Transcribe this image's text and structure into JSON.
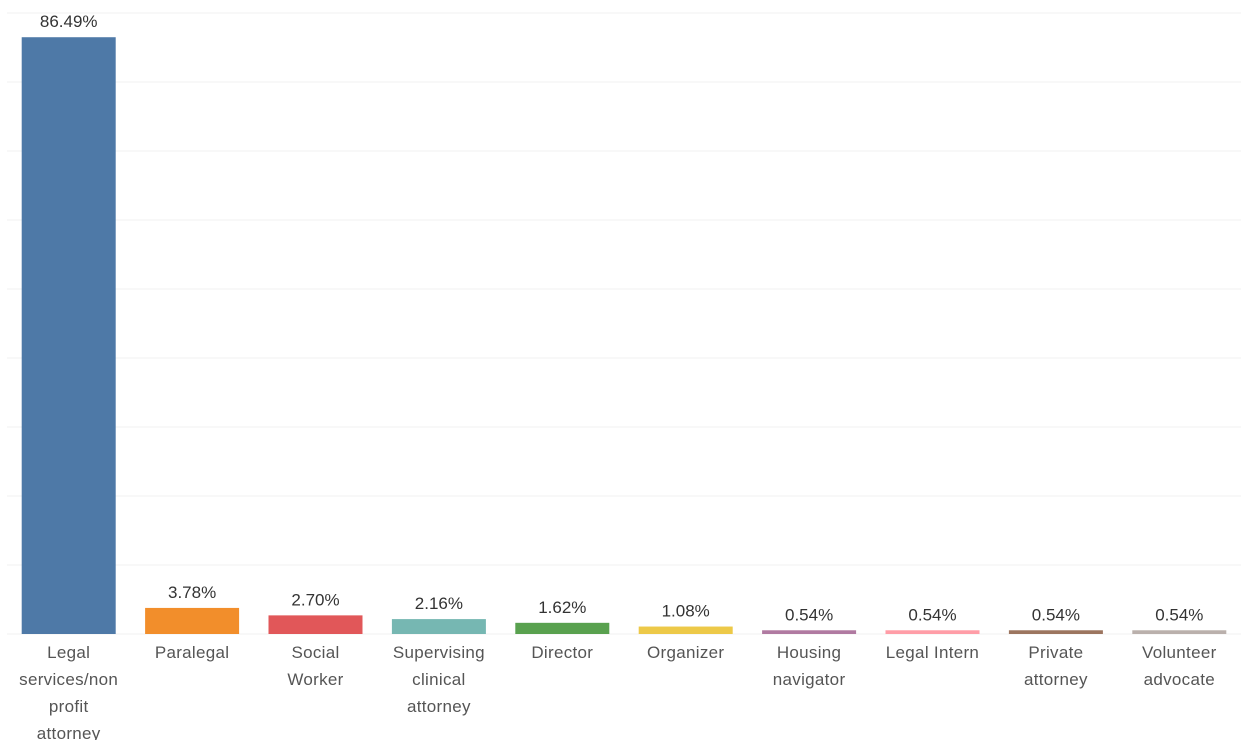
{
  "chart_data": {
    "type": "bar",
    "categories": [
      "Legal services/non profit attorney",
      "Paralegal",
      "Social Worker",
      "Supervising clinical attorney",
      "Director",
      "Organizer",
      "Housing navigator",
      "Legal Intern",
      "Private attorney",
      "Volunteer advocate"
    ],
    "values": [
      86.49,
      3.78,
      2.7,
      2.16,
      1.62,
      1.08,
      0.54,
      0.54,
      0.54,
      0.54
    ],
    "value_labels": [
      "86.49%",
      "3.78%",
      "2.70%",
      "2.16%",
      "1.62%",
      "1.08%",
      "0.54%",
      "0.54%",
      "0.54%",
      "0.54%"
    ],
    "colors": [
      "#4e79a7",
      "#f28e2b",
      "#e15759",
      "#76b7b2",
      "#59a14f",
      "#edc948",
      "#b07aa1",
      "#ff9da7",
      "#9c755f",
      "#bab0ac"
    ],
    "ylim": [
      0,
      90
    ],
    "yticks": [
      0,
      10,
      20,
      30,
      40,
      50,
      60,
      70,
      80,
      90
    ],
    "grid": true
  }
}
